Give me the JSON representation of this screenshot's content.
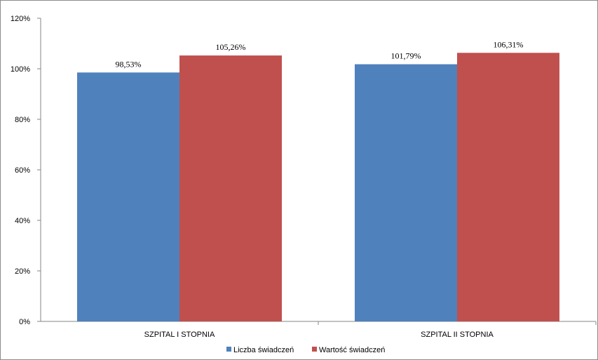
{
  "chart_data": {
    "type": "bar",
    "categories": [
      "SZPITAL I STOPNIA",
      "SZPITAL II STOPNIA"
    ],
    "series": [
      {
        "name": "Liczba świadczeń",
        "values": [
          98.53,
          101.79
        ],
        "value_labels": [
          "98,53%",
          "101,79%"
        ],
        "color": "#4f81bd"
      },
      {
        "name": "Wartość świadczeń",
        "values": [
          105.26,
          106.31
        ],
        "value_labels": [
          "105,26%",
          "106,31%"
        ],
        "color": "#c0504d"
      }
    ],
    "ylim": [
      0,
      120
    ],
    "yticks": [
      0,
      20,
      40,
      60,
      80,
      100,
      120
    ],
    "ytick_labels": [
      "0%",
      "20%",
      "40%",
      "60%",
      "80%",
      "100%",
      "120%"
    ],
    "grid": false,
    "legend": "bottom",
    "title": "",
    "xlabel": "",
    "ylabel": ""
  }
}
